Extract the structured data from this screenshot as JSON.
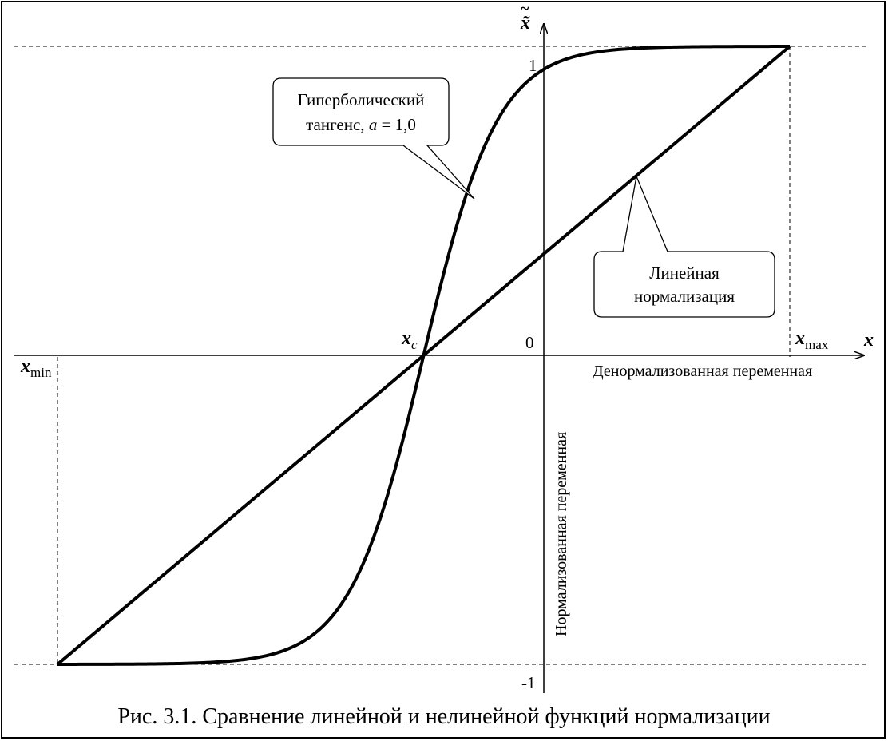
{
  "figure": {
    "caption": "Рис. 3.1. Сравнение линейной и нелинейной функций нормализации"
  },
  "axes": {
    "x_var": "x",
    "y_var": "x̃",
    "x_axis_label": "Денормализованная переменная",
    "y_axis_label": "Нормализованная переменная",
    "origin_label": "0",
    "y_tick_top": "1",
    "y_tick_bottom": "-1",
    "xmin_label": "x",
    "xmin_sub": "min",
    "xmax_label": "x",
    "xmax_sub": "max",
    "xc_label": "x",
    "xc_sub": "c"
  },
  "callouts": {
    "tanh_line1": "Гиперболический",
    "tanh_line2a": "тангенс, ",
    "tanh_line2b": "a",
    "tanh_line2c": " = 1,0",
    "linear_line1": "Линейная",
    "linear_line2": "нормализация"
  },
  "chart_data": {
    "type": "line",
    "x": {
      "min": -20,
      "center": -5,
      "max": 10
    },
    "ylim": [
      -1,
      1
    ],
    "series": [
      {
        "name": "Гиперболический тангенс, a = 1,0",
        "kind": "tanh",
        "a": 1.0
      },
      {
        "name": "Линейная нормализация",
        "kind": "linear"
      }
    ],
    "grid": false
  }
}
